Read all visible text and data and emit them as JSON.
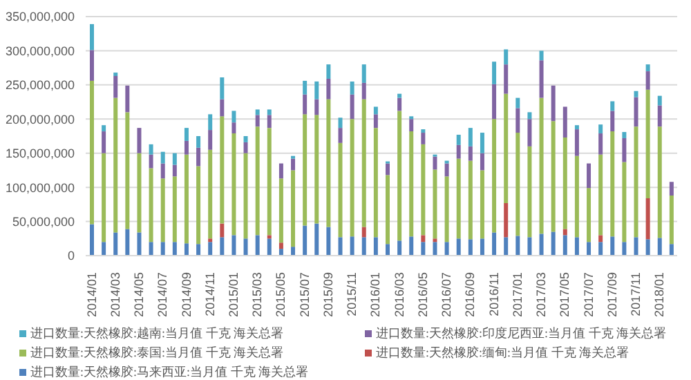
{
  "chart_data": {
    "type": "bar",
    "stacked": true,
    "categories": [
      "2014/01",
      null,
      "2014/03",
      null,
      "2014/05",
      null,
      "2014/07",
      null,
      "2014/09",
      null,
      "2014/11",
      null,
      "2015/01",
      null,
      "2015/03",
      null,
      "2015/05",
      null,
      "2015/07",
      null,
      "2015/09",
      null,
      "2015/11",
      null,
      "2016/01",
      null,
      "2016/03",
      null,
      "2016/05",
      null,
      "2016/07",
      null,
      "2016/09",
      null,
      "2016/11",
      null,
      "2017/01",
      null,
      "2017/03",
      null,
      "2017/05",
      null,
      "2017/07",
      null,
      "2017/09",
      null,
      "2017/11",
      null,
      "2018/01",
      null
    ],
    "series": [
      {
        "name": "进口数量:天然橡胶:马来西亚:当月值 千克 海关总署",
        "color": "#4f81bd",
        "values": [
          46000000,
          20000000,
          34000000,
          39000000,
          34000000,
          20000000,
          20000000,
          20000000,
          18000000,
          17000000,
          20000000,
          27000000,
          30000000,
          25000000,
          30000000,
          25000000,
          10000000,
          13000000,
          44000000,
          47000000,
          42000000,
          27000000,
          28000000,
          27000000,
          27000000,
          17000000,
          22000000,
          28000000,
          20000000,
          20000000,
          20000000,
          25000000,
          24000000,
          25000000,
          34000000,
          27000000,
          29000000,
          27000000,
          32000000,
          35000000,
          30000000,
          27000000,
          20000000,
          20000000,
          28000000,
          20000000,
          27000000,
          24000000,
          26000000,
          17000000
        ]
      },
      {
        "name": "进口数量:天然橡胶:缅甸:当月值 千克 海关总署",
        "color": "#c0504d",
        "values": [
          0,
          0,
          0,
          0,
          0,
          0,
          0,
          0,
          0,
          0,
          5000000,
          20000000,
          0,
          0,
          0,
          5000000,
          9000000,
          0,
          0,
          0,
          0,
          0,
          0,
          15000000,
          0,
          0,
          0,
          0,
          10000000,
          5000000,
          0,
          0,
          0,
          0,
          0,
          50000000,
          0,
          0,
          0,
          0,
          9000000,
          0,
          0,
          10000000,
          0,
          0,
          0,
          60000000,
          0,
          0
        ]
      },
      {
        "name": "进口数量:天然橡胶:泰国:当月值 千克 海关总署",
        "color": "#9bbb59",
        "values": [
          210000000,
          130000000,
          197000000,
          171000000,
          116000000,
          108000000,
          93000000,
          96000000,
          130000000,
          114000000,
          130000000,
          157000000,
          149000000,
          125000000,
          159000000,
          157000000,
          94000000,
          112000000,
          163000000,
          159000000,
          187000000,
          138000000,
          172000000,
          187000000,
          160000000,
          101000000,
          190000000,
          154000000,
          133000000,
          101000000,
          96000000,
          117000000,
          115000000,
          100000000,
          166000000,
          160000000,
          151000000,
          133000000,
          199000000,
          162000000,
          134000000,
          119000000,
          79000000,
          118000000,
          154000000,
          117000000,
          162000000,
          159000000,
          163000000,
          71000000
        ]
      },
      {
        "name": "进口数量:天然橡胶:印度尼西亚:当月值 千克 海关总署",
        "color": "#8064a2",
        "values": [
          45000000,
          32000000,
          32000000,
          39000000,
          37000000,
          20000000,
          22000000,
          17000000,
          20000000,
          27000000,
          29000000,
          25000000,
          16000000,
          16000000,
          17000000,
          19000000,
          22000000,
          17000000,
          29000000,
          23000000,
          30000000,
          22000000,
          36000000,
          24000000,
          20000000,
          17000000,
          19000000,
          18000000,
          17000000,
          19000000,
          19000000,
          20000000,
          21000000,
          25000000,
          51000000,
          43000000,
          36000000,
          40000000,
          55000000,
          52000000,
          45000000,
          39000000,
          36000000,
          31000000,
          30000000,
          35000000,
          43000000,
          27000000,
          31000000,
          20000000
        ]
      },
      {
        "name": "进口数量:天然橡胶:越南:当月值 千克 海关总署",
        "color": "#4bacc6",
        "values": [
          38000000,
          9000000,
          5000000,
          0,
          0,
          15000000,
          17000000,
          17000000,
          19000000,
          17000000,
          23000000,
          32000000,
          17000000,
          9000000,
          8000000,
          8000000,
          0,
          4000000,
          20000000,
          26000000,
          21000000,
          15000000,
          19000000,
          27000000,
          11000000,
          3000000,
          6000000,
          4000000,
          5000000,
          3000000,
          4000000,
          15000000,
          27000000,
          30000000,
          33000000,
          22000000,
          15000000,
          10000000,
          14000000,
          0,
          0,
          6000000,
          0,
          13000000,
          14000000,
          9000000,
          9000000,
          10000000,
          14000000,
          0
        ]
      }
    ],
    "ylim": [
      0,
      350000000
    ],
    "yticks": [
      0,
      {
        "value": 50000000,
        "label": "50,000,000"
      },
      {
        "value": 100000000,
        "label": "100,000,000"
      },
      {
        "value": 150000000,
        "label": "150,000,000"
      },
      {
        "value": 200000000,
        "label": "200,000,000"
      },
      {
        "value": 250000000,
        "label": "250,000,000"
      },
      {
        "value": 300000000,
        "label": "300,000,000"
      },
      {
        "value": 350000000,
        "label": "350,000,000"
      }
    ],
    "grid": "y",
    "legend": "bottom"
  }
}
